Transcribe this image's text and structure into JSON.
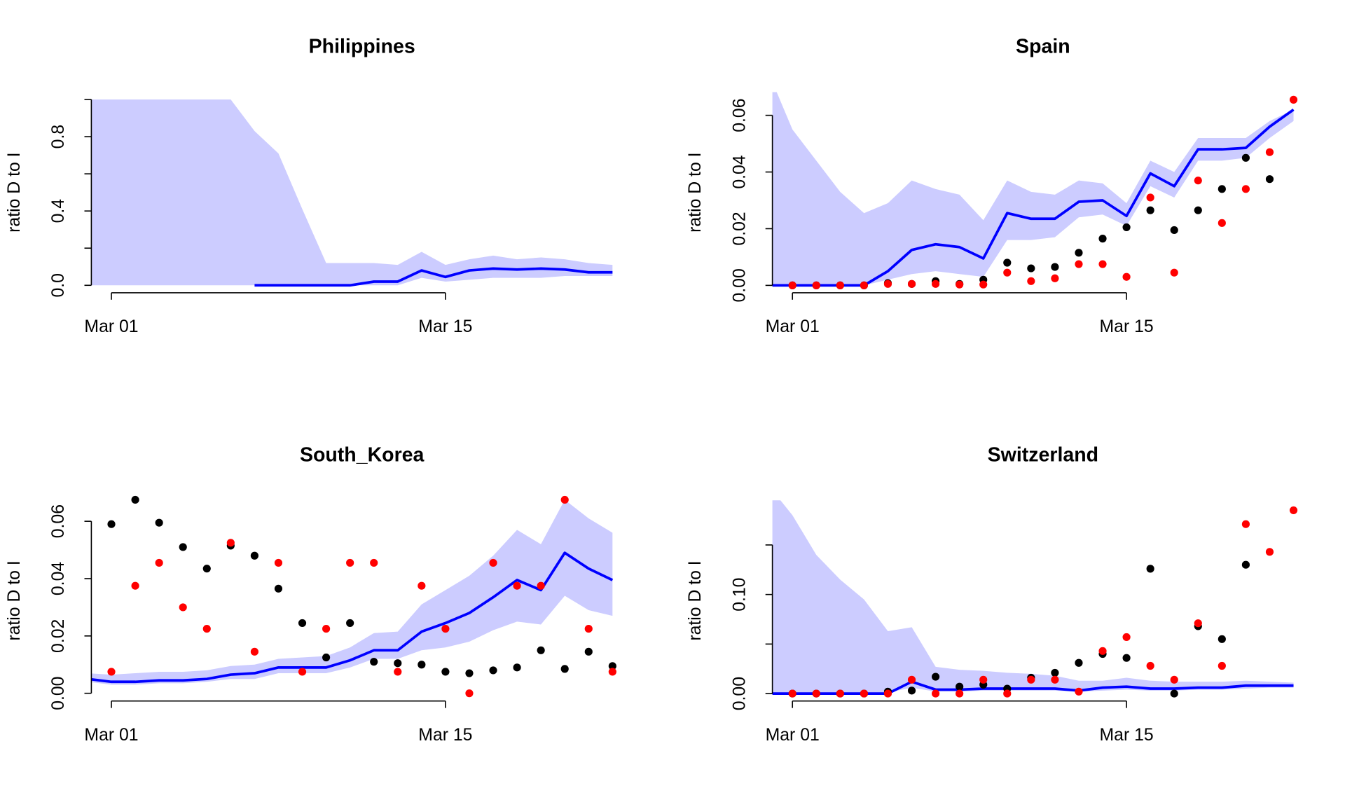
{
  "chart_data": [
    {
      "type": "line",
      "title": "Philippines",
      "y_label": "ratio D to I",
      "x": [
        0,
        1,
        2,
        3,
        4,
        5,
        6,
        7,
        8,
        9,
        10,
        11,
        12,
        13,
        14,
        15,
        16,
        17,
        18,
        19,
        20,
        21,
        22
      ],
      "xlim": [
        0.16,
        22.84
      ],
      "xticks": [
        {
          "value": 1,
          "label": "Mar 01"
        },
        {
          "value": 15,
          "label": "Mar 15"
        }
      ],
      "ylim": [
        -0.04,
        1.04
      ],
      "yticks": [
        {
          "value": 0,
          "label": "0.0"
        },
        {
          "value": 0.2,
          "label": null
        },
        {
          "value": 0.4,
          "label": "0.4"
        },
        {
          "value": 0.6,
          "label": null
        },
        {
          "value": 0.8,
          "label": "0.8"
        },
        {
          "value": 1.0,
          "label": null
        }
      ],
      "band": {
        "color": "#ccccff",
        "lower": [
          0,
          0,
          0,
          0,
          0,
          0,
          0,
          0,
          0,
          0,
          0,
          0,
          0,
          0,
          0.04,
          0.02,
          0.03,
          0.04,
          0.04,
          0.04,
          0.05,
          0.05,
          0.05
        ],
        "upper": [
          1,
          1,
          1,
          1,
          1,
          1,
          1,
          0.83,
          0.71,
          0.41,
          0.12,
          0.12,
          0.12,
          0.11,
          0.18,
          0.11,
          0.14,
          0.16,
          0.14,
          0.15,
          0.14,
          0.12,
          0.11
        ]
      },
      "series": [
        {
          "style": "line",
          "color": "#0000ff",
          "values": [
            null,
            null,
            null,
            null,
            null,
            null,
            null,
            0,
            0,
            0,
            0,
            0,
            0.02,
            0.02,
            0.08,
            0.045,
            0.08,
            0.09,
            0.085,
            0.09,
            0.085,
            0.07,
            0.07
          ]
        }
      ]
    },
    {
      "type": "line",
      "title": "Spain",
      "y_label": "ratio D to I",
      "x": [
        0,
        1,
        2,
        3,
        4,
        5,
        6,
        7,
        8,
        9,
        10,
        11,
        12,
        13,
        14,
        15,
        16,
        17,
        18,
        19,
        20,
        21,
        22
      ],
      "xlim": [
        0.16,
        22.84
      ],
      "xticks": [
        {
          "value": 1,
          "label": "Mar 01"
        },
        {
          "value": 15,
          "label": "Mar 15"
        }
      ],
      "ylim": [
        -0.0026,
        0.0682
      ],
      "yticks": [
        {
          "value": 0,
          "label": "0.00"
        },
        {
          "value": 0.02,
          "label": "0.02"
        },
        {
          "value": 0.04,
          "label": "0.04"
        },
        {
          "value": 0.06,
          "label": "0.06"
        }
      ],
      "band": {
        "color": "#ccccff",
        "lower": [
          0,
          0,
          0,
          0,
          0,
          0.002,
          0.004,
          0.005,
          0.004,
          0.003,
          0.016,
          0.016,
          0.017,
          0.024,
          0.025,
          0.021,
          0.035,
          0.031,
          0.044,
          0.044,
          0.045,
          0.052,
          0.058
        ],
        "upper": [
          0.075,
          0.055,
          0.044,
          0.033,
          0.0255,
          0.029,
          0.037,
          0.034,
          0.032,
          0.023,
          0.037,
          0.033,
          0.032,
          0.037,
          0.036,
          0.029,
          0.044,
          0.04,
          0.052,
          0.052,
          0.052,
          0.058,
          0.062
        ]
      },
      "series": [
        {
          "style": "line",
          "color": "#0000ff",
          "values": [
            0,
            0,
            0,
            0,
            0,
            0.005,
            0.0125,
            0.0145,
            0.0135,
            0.0095,
            0.0255,
            0.0235,
            0.0235,
            0.0295,
            0.03,
            0.0245,
            0.0395,
            0.035,
            0.048,
            0.048,
            0.0485,
            0.056,
            0.062
          ]
        },
        {
          "style": "points",
          "color": "#000000",
          "values": [
            null,
            0,
            0,
            0,
            0,
            0.0008,
            0.0005,
            0.0015,
            0.0005,
            0.002,
            0.008,
            0.006,
            0.0065,
            0.0115,
            0.0165,
            0.0205,
            0.0265,
            0.0195,
            0.0265,
            0.034,
            0.045,
            0.0375,
            null
          ]
        },
        {
          "style": "points",
          "color": "#ff0000",
          "values": [
            null,
            0,
            0,
            0,
            0,
            0.0005,
            0.0005,
            0.0005,
            0.0003,
            0.0003,
            0.0045,
            0.0015,
            0.0025,
            0.0075,
            0.0075,
            0.003,
            0.031,
            0.0045,
            0.037,
            0.022,
            0.034,
            0.047,
            0.0655
          ]
        }
      ]
    },
    {
      "type": "line",
      "title": "South_Korea",
      "y_label": "ratio D to I",
      "x": [
        0,
        1,
        2,
        3,
        4,
        5,
        6,
        7,
        8,
        9,
        10,
        11,
        12,
        13,
        14,
        15,
        16,
        17,
        18,
        19,
        20,
        21,
        22
      ],
      "xlim": [
        0.16,
        22.84
      ],
      "xticks": [
        {
          "value": 1,
          "label": "Mar 01"
        },
        {
          "value": 15,
          "label": "Mar 15"
        }
      ],
      "ylim": [
        -0.0027,
        0.0673
      ],
      "yticks": [
        {
          "value": 0,
          "label": "0.00"
        },
        {
          "value": 0.02,
          "label": "0.02"
        },
        {
          "value": 0.04,
          "label": "0.04"
        },
        {
          "value": 0.06,
          "label": "0.06"
        }
      ],
      "band": {
        "color": "#ccccff",
        "lower": [
          0.004,
          0.003,
          0.003,
          0.0035,
          0.0035,
          0.004,
          0.005,
          0.005,
          0.007,
          0.007,
          0.007,
          0.009,
          0.012,
          0.012,
          0.015,
          0.016,
          0.018,
          0.022,
          0.025,
          0.024,
          0.034,
          0.029,
          0.027
        ],
        "upper": [
          0.007,
          0.0065,
          0.007,
          0.0075,
          0.0075,
          0.008,
          0.0095,
          0.01,
          0.012,
          0.0125,
          0.013,
          0.016,
          0.021,
          0.0215,
          0.031,
          0.036,
          0.041,
          0.048,
          0.057,
          0.052,
          0.0675,
          0.061,
          0.056
        ]
      },
      "series": [
        {
          "style": "line",
          "color": "#0000ff",
          "values": [
            0.005,
            0.004,
            0.004,
            0.0045,
            0.0045,
            0.005,
            0.0065,
            0.007,
            0.009,
            0.009,
            0.009,
            0.0115,
            0.015,
            0.015,
            0.0215,
            0.0245,
            0.028,
            0.0335,
            0.0395,
            0.036,
            0.049,
            0.0435,
            0.0395
          ]
        },
        {
          "style": "points",
          "color": "#000000",
          "values": [
            null,
            0.059,
            0.0675,
            0.0595,
            0.051,
            0.0435,
            0.0515,
            0.048,
            0.0365,
            0.0245,
            0.0125,
            0.0245,
            0.011,
            0.0105,
            0.01,
            0.0075,
            0.007,
            0.008,
            0.009,
            0.015,
            0.0085,
            0.0145,
            0.0095
          ]
        },
        {
          "style": "points",
          "color": "#ff0000",
          "values": [
            null,
            0.0075,
            0.0375,
            0.0455,
            0.03,
            0.0225,
            0.0525,
            0.0145,
            0.0455,
            0.0075,
            0.0225,
            0.0455,
            0.0455,
            0.0075,
            0.0375,
            0.0225,
            0,
            0.0455,
            0.0375,
            0.0375,
            0.0675,
            0.0225,
            0.0075
          ]
        }
      ]
    },
    {
      "type": "line",
      "title": "Switzerland",
      "y_label": "ratio D to I",
      "x": [
        0,
        1,
        2,
        3,
        4,
        5,
        6,
        7,
        8,
        9,
        10,
        11,
        12,
        13,
        14,
        15,
        16,
        17,
        18,
        19,
        20,
        21,
        22
      ],
      "xlim": [
        0.16,
        22.84
      ],
      "xticks": [
        {
          "value": 1,
          "label": "Mar 01"
        },
        {
          "value": 15,
          "label": "Mar 15"
        }
      ],
      "ylim": [
        -0.0075,
        0.195
      ],
      "yticks": [
        {
          "value": 0,
          "label": "0.00"
        },
        {
          "value": 0.05,
          "label": null
        },
        {
          "value": 0.1,
          "label": "0.10"
        },
        {
          "value": 0.15,
          "label": null
        }
      ],
      "band": {
        "color": "#ccccff",
        "lower": [
          0,
          0,
          0,
          0,
          0,
          0.001,
          0.006,
          0.002,
          0.002,
          0.003,
          0.003,
          0.003,
          0.003,
          0.002,
          0.003,
          0.004,
          0.003,
          0.003,
          0.004,
          0.004,
          0.005,
          0.006,
          0.006
        ],
        "upper": [
          0.21,
          0.18,
          0.14,
          0.115,
          0.095,
          0.063,
          0.067,
          0.027,
          0.024,
          0.023,
          0.021,
          0.02,
          0.018,
          0.013,
          0.013,
          0.016,
          0.013,
          0.012,
          0.012,
          0.012,
          0.013,
          0.012,
          0.011
        ]
      },
      "series": [
        {
          "style": "line",
          "color": "#0000ff",
          "values": [
            0,
            0,
            0,
            0,
            0,
            0,
            0.012,
            0.004,
            0.004,
            0.005,
            0.005,
            0.005,
            0.005,
            0.003,
            0.006,
            0.007,
            0.005,
            0.005,
            0.006,
            0.006,
            0.008,
            0.008,
            0.008
          ]
        },
        {
          "style": "points",
          "color": "#000000",
          "values": [
            null,
            0,
            0,
            0,
            0,
            0.002,
            0.003,
            0.017,
            0.007,
            0.009,
            0.005,
            0.016,
            0.021,
            0.031,
            0.04,
            0.036,
            0.126,
            0,
            0.068,
            0.055,
            0.13,
            null,
            null
          ]
        },
        {
          "style": "points",
          "color": "#ff0000",
          "values": [
            null,
            0,
            0,
            0,
            0,
            0,
            0.014,
            0,
            0,
            0.014,
            0,
            0.014,
            0.014,
            0.002,
            0.043,
            0.057,
            0.028,
            0.014,
            0.071,
            0.028,
            0.171,
            0.143,
            0.185
          ]
        }
      ]
    }
  ]
}
